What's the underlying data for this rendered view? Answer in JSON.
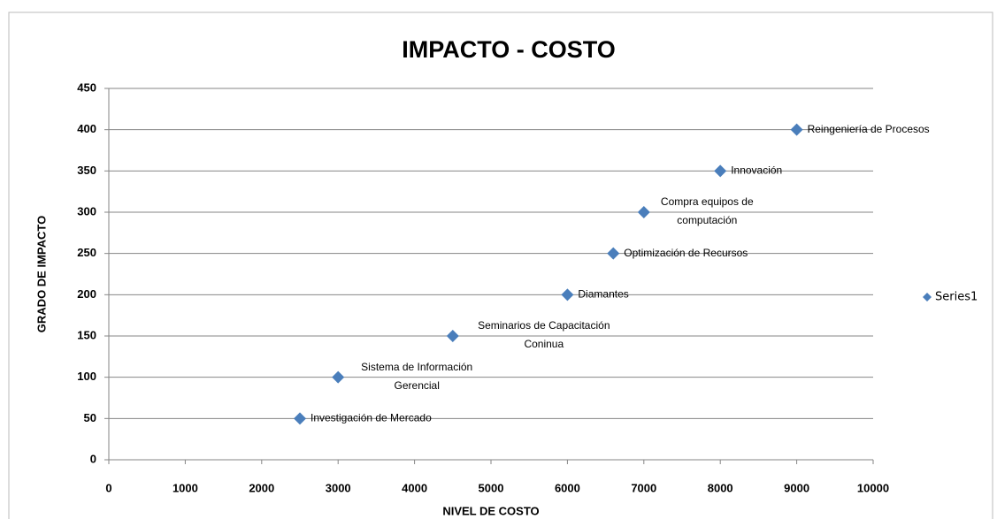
{
  "chart_data": {
    "type": "scatter",
    "title": "IMPACTO - COSTO",
    "xlabel": "NIVEL DE COSTO",
    "ylabel": "GRADO DE IMPACTO",
    "series": [
      {
        "name": "Series1",
        "color": "#4a7ebb",
        "x": [
          2500,
          3000,
          4500,
          6000,
          6600,
          7000,
          8000,
          9000
        ],
        "values": [
          50,
          100,
          150,
          200,
          250,
          300,
          350,
          400
        ],
        "labels": [
          [
            "Investigación de Mercado"
          ],
          [
            "Sistema de Información",
            "Gerencial"
          ],
          [
            "Seminarios de Capacitación",
            "Coninua"
          ],
          [
            "Diamantes"
          ],
          [
            "Optimización de Recursos"
          ],
          [
            "Compra equipos de",
            "computación"
          ],
          [
            "Innovación"
          ],
          [
            "Reingeniería de Procesos"
          ]
        ]
      }
    ],
    "xlim": [
      0,
      10000
    ],
    "xticks": [
      0,
      1000,
      2000,
      3000,
      4000,
      5000,
      6000,
      7000,
      8000,
      9000,
      10000
    ],
    "ylim": [
      0,
      450
    ],
    "yticks": [
      0,
      50,
      100,
      150,
      200,
      250,
      300,
      350,
      400,
      450
    ],
    "grid": true,
    "legend": "right"
  }
}
